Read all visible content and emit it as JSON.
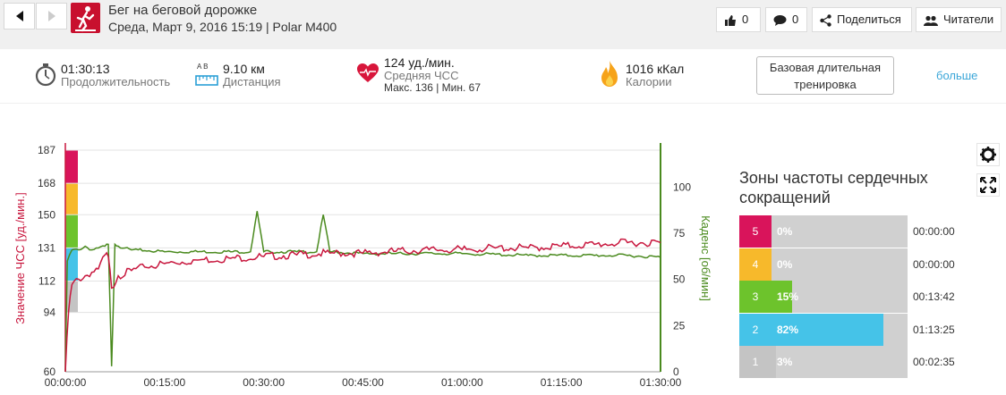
{
  "header": {
    "title": "Бег на беговой дорожке",
    "subtitle": "Среда, Март 9, 2016 15:19 | Polar M400",
    "likes_count": "0",
    "comments_count": "0",
    "share_label": "Поделиться",
    "readers_label": "Читатели"
  },
  "summary": {
    "duration_value": "01:30:13",
    "duration_label": "Продолжительность",
    "distance_ab": "A    B",
    "distance_value": "9.10 км",
    "distance_label": "Дистанция",
    "hr_value": "124 уд./мин.",
    "hr_label": "Средняя ЧСС",
    "hr_minmax": "Макс. 136  |  Мин. 67",
    "calories_value": "1016 кКал",
    "calories_label": "Калории",
    "training_tag_line1": "Базовая длительная",
    "training_tag_line2": "тренировка",
    "more_label": "больше"
  },
  "colors": {
    "hr_line": "#c8173e",
    "cadence_line": "#4a8a1e",
    "zone5": "#d9145b",
    "zone4": "#f7b92b",
    "zone3": "#6dc32c",
    "zone2": "#45c3e8",
    "zone1": "#c4c4c4"
  },
  "chart_data": {
    "type": "line",
    "ylabel_left": "Значение ЧСС [уд./мин.]",
    "ylabel_right": "Каденс [об/мин]",
    "left_ticks": [
      "187",
      "168",
      "150",
      "131",
      "112",
      "94",
      "60"
    ],
    "left_tick_values": [
      187,
      168,
      150,
      131,
      112,
      94,
      60
    ],
    "right_ticks": [
      "100",
      "75",
      "50",
      "25",
      "0"
    ],
    "right_tick_values": [
      100,
      75,
      50,
      25,
      0
    ],
    "x_ticks": [
      "00:00:00",
      "00:15:00",
      "00:30:00",
      "00:45:00",
      "01:00:00",
      "01:15:00",
      "01:30:00"
    ],
    "x_range_min": [
      0,
      90
    ],
    "left_range": [
      60,
      187
    ],
    "right_range": [
      0,
      120
    ],
    "series": [
      {
        "name": "Значение ЧСС [уд./мин.]",
        "axis": "left",
        "x": [
          0,
          0.5,
          1,
          2,
          3,
          4,
          5,
          6,
          6.5,
          7,
          8,
          10,
          12,
          15,
          20,
          25,
          30,
          35,
          40,
          45,
          50,
          55,
          60,
          65,
          70,
          75,
          80,
          85,
          90
        ],
        "y": [
          60,
          95,
          110,
          113,
          115,
          117,
          119,
          127,
          126,
          108,
          115,
          118,
          120,
          122,
          124,
          125,
          126,
          127,
          128,
          128,
          129,
          130,
          130,
          131,
          131,
          132,
          133,
          134,
          134
        ]
      },
      {
        "name": "Каденс [об/мин]",
        "axis": "right",
        "x": [
          0,
          0.3,
          1,
          2,
          3,
          4,
          5,
          6,
          6.5,
          7,
          7.5,
          8,
          9,
          10,
          11,
          15,
          20,
          25,
          28,
          29,
          30,
          31,
          35,
          38,
          39,
          40,
          45,
          50,
          60,
          70,
          80,
          85,
          90
        ],
        "y": [
          0,
          60,
          66,
          66,
          68,
          66,
          67,
          68,
          69,
          3,
          69,
          68,
          67,
          66,
          66,
          65,
          65,
          65,
          65,
          87,
          65,
          65,
          65,
          65,
          85,
          65,
          64,
          64,
          64,
          63,
          63,
          63,
          62
        ]
      }
    ],
    "zone_bands": [
      {
        "zone": "5",
        "from": 168,
        "to": 187
      },
      {
        "zone": "4",
        "from": 150,
        "to": 168
      },
      {
        "zone": "3",
        "from": 131,
        "to": 150
      },
      {
        "zone": "2",
        "from": 112,
        "to": 131
      },
      {
        "zone": "1",
        "from": 94,
        "to": 112
      }
    ]
  },
  "zones": {
    "title_line1": "Зоны частоты сердечных",
    "title_line2": "сокращений",
    "rows": [
      {
        "num": "5",
        "pct": "0%",
        "fraction": 0.0,
        "time": "00:00:00",
        "color": "#d9145b"
      },
      {
        "num": "4",
        "pct": "0%",
        "fraction": 0.0,
        "time": "00:00:00",
        "color": "#f7b92b"
      },
      {
        "num": "3",
        "pct": "15%",
        "fraction": 0.15,
        "time": "00:13:42",
        "color": "#6dc32c"
      },
      {
        "num": "2",
        "pct": "82%",
        "fraction": 0.82,
        "time": "01:13:25",
        "color": "#45c3e8"
      },
      {
        "num": "1",
        "pct": "3%",
        "fraction": 0.03,
        "time": "00:02:35",
        "color": "#c4c4c4"
      }
    ]
  }
}
